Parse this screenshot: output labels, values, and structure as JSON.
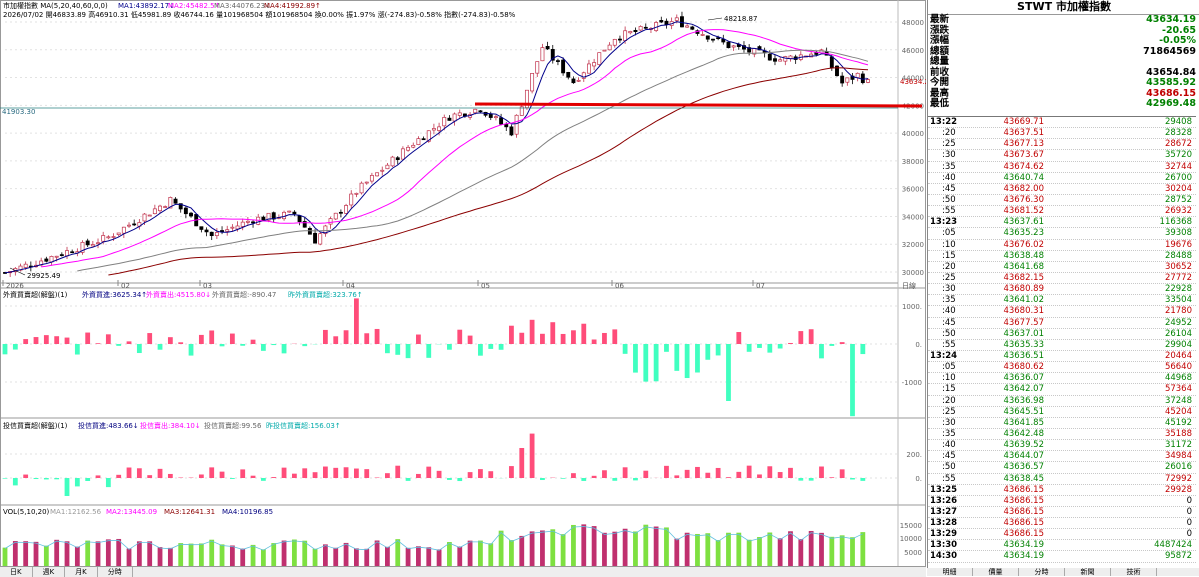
{
  "header": {
    "line1": "市加權指數 MA(5,20,40,60,0,0)",
    "ma1": "MA1:43892.17↓",
    "ma2": "MA2:45482.5↑",
    "ma3": "MA3:44076.23↓",
    "ma4": "MA4:41992.89↑",
    "line2": "2026/07/02 開46833.89 高46910.31 低45981.89 收46744.16 量101968504 額101968504 換0.00% 振1.97% 漲(-274.83)-0.58% 指數(-274.83)-0.58%"
  },
  "colors": {
    "up": "#ff4d7a",
    "down": "#40ffc0",
    "ma5": "#00008b",
    "ma20": "#ff00ff",
    "ma40": "#808080",
    "ma60": "#8b0000",
    "support_line": "#e00000"
  },
  "price_axis": {
    "labels": [
      "48000",
      "46000",
      "44000",
      "42000",
      "40000",
      "38000",
      "36000",
      "34000",
      "32000",
      "30000"
    ]
  },
  "price_markers": {
    "high": "48218.87",
    "low": "29925.49",
    "left_level": "41903.30",
    "current": "43634.2"
  },
  "month_labels": [
    "2026",
    "02",
    "03",
    "04",
    "05",
    "06",
    "07"
  ],
  "axis_unit": "日線",
  "sub1": {
    "title": "外資買賣超(解盤)(1)",
    "buy": "外資買進:3625.34↑",
    "sell": "外資賣出:4515.80↓",
    "net": "外資買賣超:-890.47",
    "net2": "昨外資買賣超:323.76↑",
    "axis": [
      "1000.",
      "0.",
      "-1000"
    ]
  },
  "sub2": {
    "title": "投信買賣超(解盤)(1)",
    "buy": "投信買進:483.66↓",
    "sell": "投信賣出:384.10↓",
    "net": "投信買賣超:99.56",
    "net2": "昨投信買賣超:156.03↑",
    "axis": [
      "200.",
      "0."
    ]
  },
  "vol": {
    "title": "VOL(5,10,20)",
    "ma1": "MA1:12162.56",
    "ma2": "MA2:13445.09",
    "ma3": "MA3:12641.31",
    "ma4": "MA4:10196.85",
    "axis": [
      "15000",
      "10000",
      "5000"
    ]
  },
  "bottom_tabs": [
    "日K",
    "週K",
    "月K",
    "分時"
  ],
  "panel": {
    "title": "STWT 市加權指數",
    "summary": [
      {
        "label": "最新",
        "value": "43634.19",
        "color": "green"
      },
      {
        "label": "漲跌",
        "value": "-20.65",
        "color": "green"
      },
      {
        "label": "漲幅",
        "value": "-0.05%",
        "color": "green"
      },
      {
        "label": "總額",
        "value": "71864569",
        "color": "black"
      },
      {
        "label": "總量",
        "value": "",
        "color": "black"
      },
      {
        "label": "前收",
        "value": "43654.84",
        "color": "black"
      },
      {
        "label": "今開",
        "value": "43585.92",
        "color": "green"
      },
      {
        "label": "最高",
        "value": "43686.15",
        "color": "red"
      },
      {
        "label": "最低",
        "value": "42969.48",
        "color": "green"
      }
    ],
    "ticks": [
      {
        "t": "13:22",
        "p": "43669.71",
        "v": "29408",
        "pc": "red",
        "vc": "green",
        "head": true
      },
      {
        "t": ":20",
        "p": "43637.51",
        "v": "28328",
        "pc": "red",
        "vc": "green"
      },
      {
        "t": ":25",
        "p": "43677.13",
        "v": "28672",
        "pc": "red",
        "vc": "red"
      },
      {
        "t": ":30",
        "p": "43673.67",
        "v": "35720",
        "pc": "red",
        "vc": "green"
      },
      {
        "t": ":35",
        "p": "43674.62",
        "v": "32744",
        "pc": "red",
        "vc": "red"
      },
      {
        "t": ":40",
        "p": "43640.74",
        "v": "26700",
        "pc": "green",
        "vc": "green"
      },
      {
        "t": ":45",
        "p": "43682.00",
        "v": "30204",
        "pc": "red",
        "vc": "red"
      },
      {
        "t": ":50",
        "p": "43676.30",
        "v": "28752",
        "pc": "red",
        "vc": "green"
      },
      {
        "t": ":55",
        "p": "43681.52",
        "v": "26932",
        "pc": "red",
        "vc": "red"
      },
      {
        "t": "13:23",
        "p": "43637.61",
        "v": "116368",
        "pc": "green",
        "vc": "green",
        "head": true
      },
      {
        "t": ":05",
        "p": "43635.23",
        "v": "39308",
        "pc": "green",
        "vc": "green"
      },
      {
        "t": ":10",
        "p": "43676.02",
        "v": "19676",
        "pc": "red",
        "vc": "red"
      },
      {
        "t": ":15",
        "p": "43638.48",
        "v": "28488",
        "pc": "green",
        "vc": "green"
      },
      {
        "t": ":20",
        "p": "43641.68",
        "v": "30652",
        "pc": "green",
        "vc": "red"
      },
      {
        "t": ":25",
        "p": "43682.15",
        "v": "27772",
        "pc": "red",
        "vc": "red"
      },
      {
        "t": ":30",
        "p": "43680.89",
        "v": "22928",
        "pc": "red",
        "vc": "green"
      },
      {
        "t": ":35",
        "p": "43641.02",
        "v": "33504",
        "pc": "green",
        "vc": "green"
      },
      {
        "t": ":40",
        "p": "43680.31",
        "v": "21780",
        "pc": "red",
        "vc": "red"
      },
      {
        "t": ":45",
        "p": "43677.57",
        "v": "24952",
        "pc": "red",
        "vc": "green"
      },
      {
        "t": ":50",
        "p": "43637.01",
        "v": "26104",
        "pc": "green",
        "vc": "green"
      },
      {
        "t": ":55",
        "p": "43635.33",
        "v": "29904",
        "pc": "green",
        "vc": "green"
      },
      {
        "t": "13:24",
        "p": "43636.51",
        "v": "20464",
        "pc": "green",
        "vc": "red",
        "head": true
      },
      {
        "t": ":05",
        "p": "43680.62",
        "v": "56640",
        "pc": "red",
        "vc": "red"
      },
      {
        "t": ":10",
        "p": "43636.07",
        "v": "44968",
        "pc": "green",
        "vc": "green"
      },
      {
        "t": ":15",
        "p": "43642.07",
        "v": "57364",
        "pc": "green",
        "vc": "red"
      },
      {
        "t": ":20",
        "p": "43636.98",
        "v": "37248",
        "pc": "green",
        "vc": "green"
      },
      {
        "t": ":25",
        "p": "43645.51",
        "v": "45204",
        "pc": "green",
        "vc": "red"
      },
      {
        "t": ":30",
        "p": "43641.85",
        "v": "45192",
        "pc": "green",
        "vc": "green"
      },
      {
        "t": ":35",
        "p": "43642.48",
        "v": "35188",
        "pc": "green",
        "vc": "red"
      },
      {
        "t": ":40",
        "p": "43639.52",
        "v": "31172",
        "pc": "green",
        "vc": "green"
      },
      {
        "t": ":45",
        "p": "43644.07",
        "v": "34984",
        "pc": "green",
        "vc": "red"
      },
      {
        "t": ":50",
        "p": "43636.57",
        "v": "26016",
        "pc": "green",
        "vc": "green"
      },
      {
        "t": ":55",
        "p": "43638.45",
        "v": "72992",
        "pc": "green",
        "vc": "red"
      },
      {
        "t": "13:25",
        "p": "43686.15",
        "v": "29928",
        "pc": "red",
        "vc": "red",
        "head": true
      },
      {
        "t": "13:26",
        "p": "43686.15",
        "v": "0",
        "pc": "red",
        "vc": "black",
        "head": true
      },
      {
        "t": "13:27",
        "p": "43686.15",
        "v": "0",
        "pc": "red",
        "vc": "black",
        "head": true
      },
      {
        "t": "13:28",
        "p": "43686.15",
        "v": "0",
        "pc": "red",
        "vc": "black",
        "head": true
      },
      {
        "t": "13:29",
        "p": "43686.15",
        "v": "0",
        "pc": "red",
        "vc": "black",
        "head": true
      },
      {
        "t": "13:30",
        "p": "43634.19",
        "v": "4487424",
        "pc": "green",
        "vc": "green",
        "head": true
      },
      {
        "t": "14:30",
        "p": "43634.19",
        "v": "95872",
        "pc": "green",
        "vc": "green",
        "head": true
      }
    ]
  },
  "panel_tabs": [
    "明細",
    "價量",
    "分時",
    "新聞",
    "技術"
  ]
}
